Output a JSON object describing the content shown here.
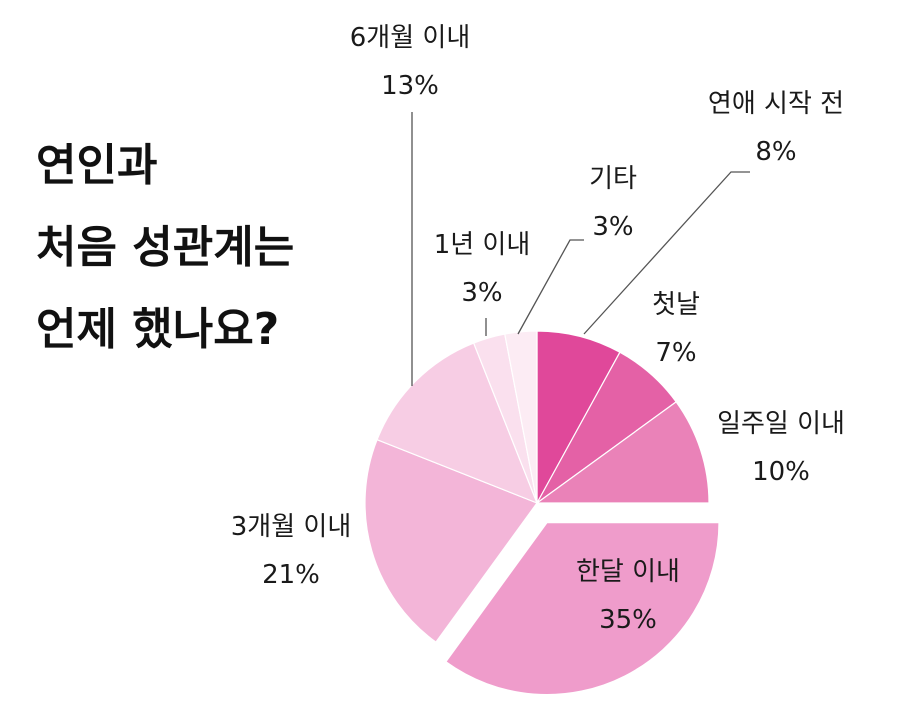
{
  "chart_data": {
    "type": "pie",
    "title": [
      "연인과",
      "처음 성관계는",
      "언제 했나요?"
    ],
    "categories": [
      "연애 시작 전",
      "첫날",
      "일주일 이내",
      "한달 이내",
      "3개월 이내",
      "6개월 이내",
      "1년 이내",
      "기타"
    ],
    "values": [
      8,
      7,
      10,
      35,
      21,
      13,
      3,
      3
    ],
    "value_labels": [
      "8%",
      "7%",
      "10%",
      "35%",
      "21%",
      "13%",
      "3%",
      "3%"
    ],
    "colors": [
      "#e0489a",
      "#e461a6",
      "#ea82b8",
      "#ef9ccb",
      "#f3b5d8",
      "#f7cde4",
      "#fae0ee",
      "#fcecf4"
    ],
    "exploded_category": "한달 이내",
    "start": "12 o'clock, clockwise",
    "legend": "none",
    "grid": false
  }
}
